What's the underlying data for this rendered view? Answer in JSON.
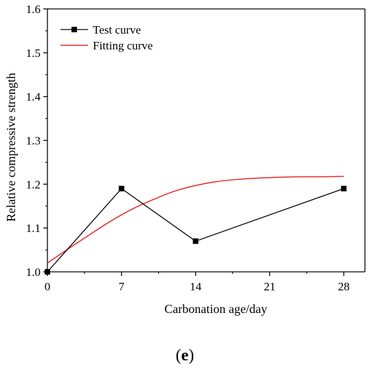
{
  "chart_data": {
    "type": "line",
    "xlabel": "Carbonation age/day",
    "ylabel": "Relative compressive strength",
    "xlim": [
      0,
      30
    ],
    "ylim": [
      1.0,
      1.6
    ],
    "xticks": [
      0,
      7,
      14,
      21,
      28
    ],
    "yticks": [
      1.0,
      1.1,
      1.2,
      1.3,
      1.4,
      1.5,
      1.6
    ],
    "ytick_labels": [
      "1.0",
      "1.1",
      "1.2",
      "1.3",
      "1.4",
      "1.5",
      "1.6"
    ],
    "grid": false,
    "legend_position": "top-left",
    "series": [
      {
        "name": "Test curve",
        "color": "#000000",
        "marker": "square",
        "x": [
          0,
          7,
          14,
          28
        ],
        "y": [
          1.0,
          1.19,
          1.07,
          1.19
        ]
      },
      {
        "name": "Fitting curve",
        "color": "#e8262a",
        "marker": "none",
        "x": [
          0,
          2,
          4,
          6,
          8,
          10,
          12,
          14,
          16,
          18,
          20,
          22,
          24,
          26,
          28
        ],
        "y": [
          1.02,
          1.053,
          1.085,
          1.116,
          1.143,
          1.165,
          1.184,
          1.197,
          1.206,
          1.211,
          1.214,
          1.216,
          1.217,
          1.217,
          1.218
        ]
      }
    ]
  },
  "panel_label": {
    "open": "(",
    "letter": "e",
    "close": ")"
  }
}
